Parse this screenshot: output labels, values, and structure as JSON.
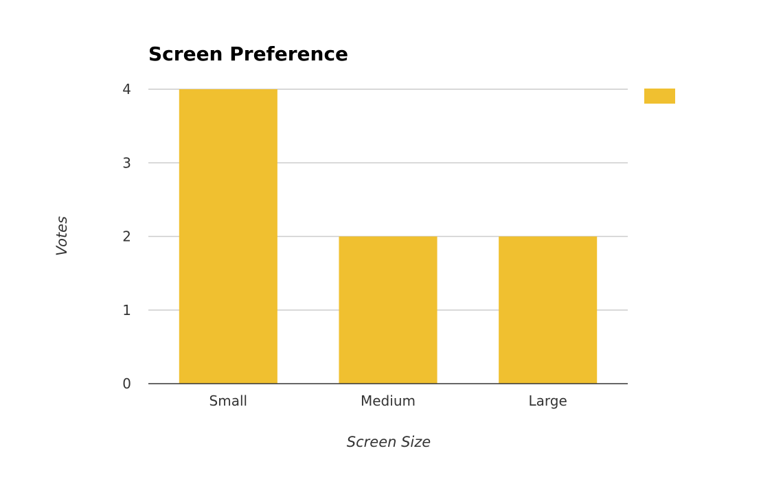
{
  "chart_data": {
    "type": "bar",
    "title": "Screen Preference",
    "xlabel": "Screen Size",
    "ylabel": "Votes",
    "categories": [
      "Small",
      "Medium",
      "Large"
    ],
    "series": [
      {
        "values": [
          4,
          2,
          2
        ],
        "color": "#f0c030"
      }
    ],
    "ylim": [
      0,
      4
    ],
    "yticks": [
      0,
      1,
      2,
      3,
      4
    ],
    "grid": true,
    "legend": "top-right"
  },
  "colors": {
    "bar": "#f0c030",
    "gridline": "#cccccc",
    "axis": "#333333"
  }
}
